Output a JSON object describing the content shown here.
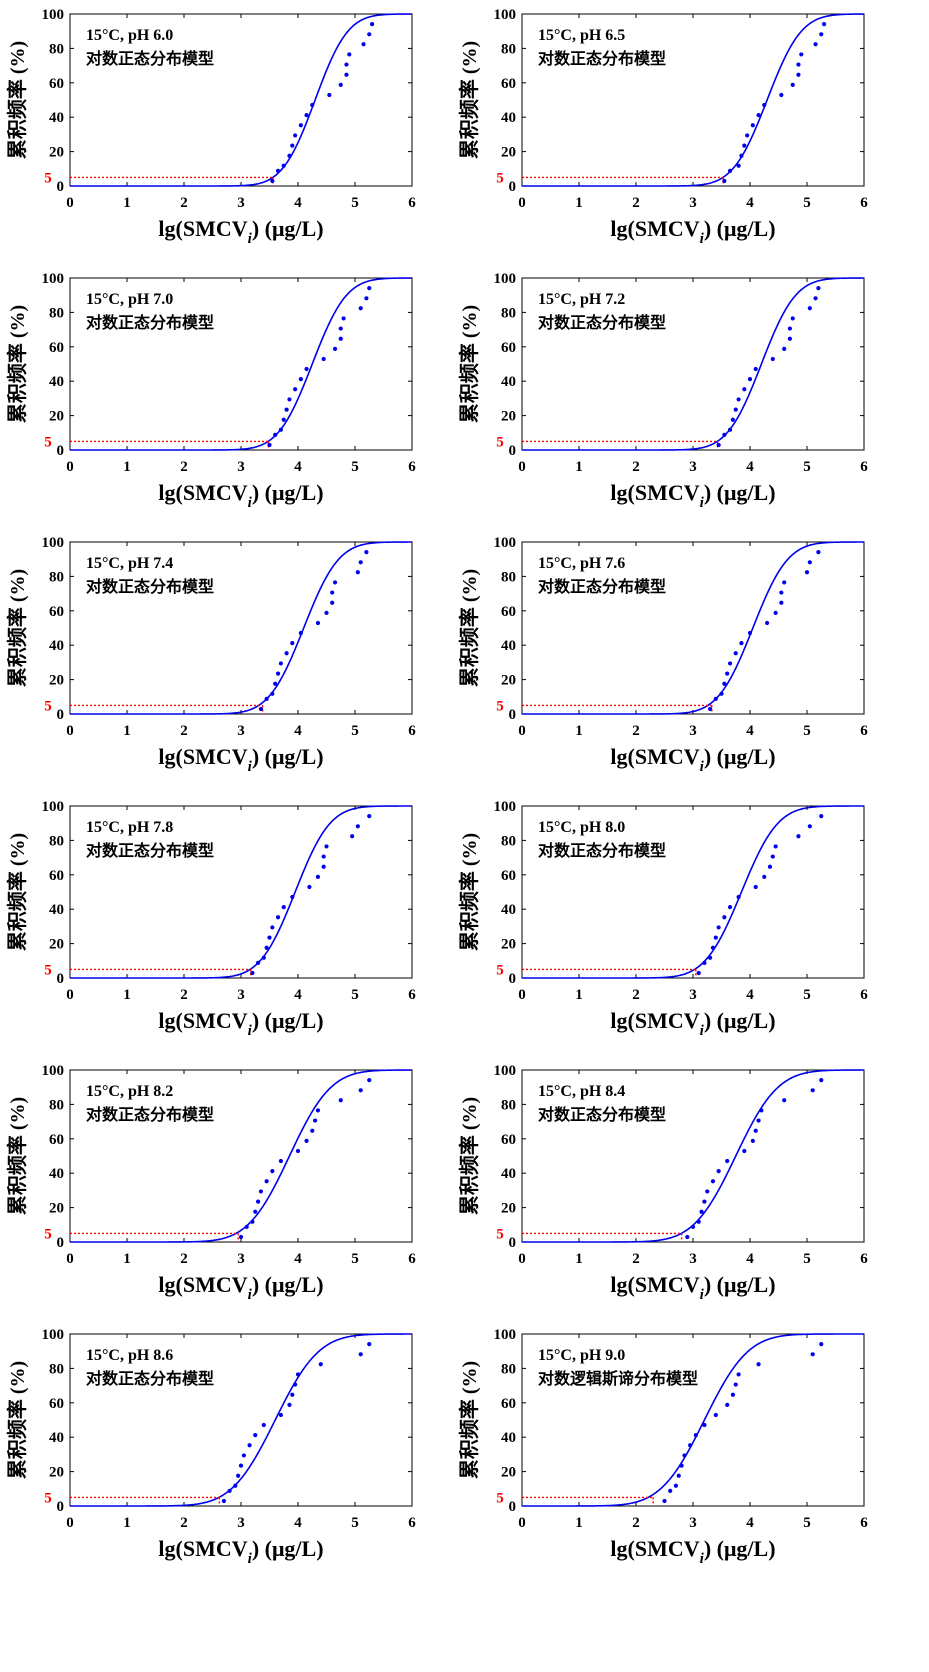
{
  "figure": {
    "ylabel": "累积频率 (%)",
    "xlabel_main": "lg(SMCV",
    "xlabel_sub": "i",
    "xlabel_unit": ")  (μg/L)",
    "ref_label": "5"
  },
  "chart_data": [
    {
      "type": "scatter",
      "title": "15°C, pH 6.0",
      "model": "对数正态分布模型",
      "xlim": [
        0,
        6
      ],
      "ylim": [
        0,
        100
      ],
      "xticks": [
        "0",
        "1",
        "2",
        "3",
        "4",
        "5",
        "6"
      ],
      "yticks": [
        "0",
        "20",
        "40",
        "60",
        "80",
        "100"
      ],
      "curve": {
        "mu": 4.3,
        "sigma": 0.45
      },
      "threshold_x": 3.56,
      "points": [
        {
          "x": 3.55,
          "y": 2.9
        },
        {
          "x": 3.65,
          "y": 8.8
        },
        {
          "x": 3.75,
          "y": 11.8
        },
        {
          "x": 3.85,
          "y": 17.6
        },
        {
          "x": 3.9,
          "y": 23.5
        },
        {
          "x": 3.95,
          "y": 29.4
        },
        {
          "x": 4.05,
          "y": 35.3
        },
        {
          "x": 4.15,
          "y": 41.2
        },
        {
          "x": 4.25,
          "y": 47.1
        },
        {
          "x": 4.55,
          "y": 52.9
        },
        {
          "x": 4.75,
          "y": 58.8
        },
        {
          "x": 4.85,
          "y": 64.7
        },
        {
          "x": 4.85,
          "y": 70.6
        },
        {
          "x": 4.9,
          "y": 76.5
        },
        {
          "x": 5.15,
          "y": 82.4
        },
        {
          "x": 5.25,
          "y": 88.2
        },
        {
          "x": 5.3,
          "y": 94.1
        }
      ]
    },
    {
      "type": "scatter",
      "title": "15°C, pH 6.5",
      "model": "对数正态分布模型",
      "xlim": [
        0,
        6
      ],
      "ylim": [
        0,
        100
      ],
      "xticks": [
        "0",
        "1",
        "2",
        "3",
        "4",
        "5",
        "6"
      ],
      "yticks": [
        "0",
        "20",
        "40",
        "60",
        "80",
        "100"
      ],
      "curve": {
        "mu": 4.3,
        "sigma": 0.47
      },
      "threshold_x": 3.53,
      "points": [
        {
          "x": 3.55,
          "y": 2.9
        },
        {
          "x": 3.65,
          "y": 8.8
        },
        {
          "x": 3.8,
          "y": 11.8
        },
        {
          "x": 3.85,
          "y": 17.6
        },
        {
          "x": 3.9,
          "y": 23.5
        },
        {
          "x": 3.95,
          "y": 29.4
        },
        {
          "x": 4.05,
          "y": 35.3
        },
        {
          "x": 4.15,
          "y": 41.2
        },
        {
          "x": 4.25,
          "y": 47.1
        },
        {
          "x": 4.55,
          "y": 52.9
        },
        {
          "x": 4.75,
          "y": 58.8
        },
        {
          "x": 4.85,
          "y": 64.7
        },
        {
          "x": 4.85,
          "y": 70.6
        },
        {
          "x": 4.9,
          "y": 76.5
        },
        {
          "x": 5.15,
          "y": 82.4
        },
        {
          "x": 5.25,
          "y": 88.2
        },
        {
          "x": 5.3,
          "y": 94.1
        }
      ]
    },
    {
      "type": "scatter",
      "title": "15°C, pH 7.0",
      "model": "对数正态分布模型",
      "xlim": [
        0,
        6
      ],
      "ylim": [
        0,
        100
      ],
      "xticks": [
        "0",
        "1",
        "2",
        "3",
        "4",
        "5",
        "6"
      ],
      "yticks": [
        "0",
        "20",
        "40",
        "60",
        "80",
        "100"
      ],
      "curve": {
        "mu": 4.25,
        "sigma": 0.47
      },
      "threshold_x": 3.48,
      "points": [
        {
          "x": 3.5,
          "y": 2.9
        },
        {
          "x": 3.6,
          "y": 8.8
        },
        {
          "x": 3.7,
          "y": 11.8
        },
        {
          "x": 3.75,
          "y": 17.6
        },
        {
          "x": 3.8,
          "y": 23.5
        },
        {
          "x": 3.85,
          "y": 29.4
        },
        {
          "x": 3.95,
          "y": 35.3
        },
        {
          "x": 4.05,
          "y": 41.2
        },
        {
          "x": 4.15,
          "y": 47.1
        },
        {
          "x": 4.45,
          "y": 52.9
        },
        {
          "x": 4.65,
          "y": 58.8
        },
        {
          "x": 4.75,
          "y": 64.7
        },
        {
          "x": 4.75,
          "y": 70.6
        },
        {
          "x": 4.8,
          "y": 76.5
        },
        {
          "x": 5.1,
          "y": 82.4
        },
        {
          "x": 5.2,
          "y": 88.2
        },
        {
          "x": 5.25,
          "y": 94.1
        }
      ]
    },
    {
      "type": "scatter",
      "title": "15°C, pH 7.2",
      "model": "对数正态分布模型",
      "xlim": [
        0,
        6
      ],
      "ylim": [
        0,
        100
      ],
      "xticks": [
        "0",
        "1",
        "2",
        "3",
        "4",
        "5",
        "6"
      ],
      "yticks": [
        "0",
        "20",
        "40",
        "60",
        "80",
        "100"
      ],
      "curve": {
        "mu": 4.2,
        "sigma": 0.47
      },
      "threshold_x": 3.43,
      "points": [
        {
          "x": 3.45,
          "y": 2.9
        },
        {
          "x": 3.55,
          "y": 8.8
        },
        {
          "x": 3.65,
          "y": 11.8
        },
        {
          "x": 3.7,
          "y": 17.6
        },
        {
          "x": 3.75,
          "y": 23.5
        },
        {
          "x": 3.8,
          "y": 29.4
        },
        {
          "x": 3.9,
          "y": 35.3
        },
        {
          "x": 4.0,
          "y": 41.2
        },
        {
          "x": 4.1,
          "y": 47.1
        },
        {
          "x": 4.4,
          "y": 52.9
        },
        {
          "x": 4.6,
          "y": 58.8
        },
        {
          "x": 4.7,
          "y": 64.7
        },
        {
          "x": 4.7,
          "y": 70.6
        },
        {
          "x": 4.75,
          "y": 76.5
        },
        {
          "x": 5.05,
          "y": 82.4
        },
        {
          "x": 5.15,
          "y": 88.2
        },
        {
          "x": 5.2,
          "y": 94.1
        }
      ]
    },
    {
      "type": "scatter",
      "title": "15°C, pH 7.4",
      "model": "对数正态分布模型",
      "xlim": [
        0,
        6
      ],
      "ylim": [
        0,
        100
      ],
      "xticks": [
        "0",
        "1",
        "2",
        "3",
        "4",
        "5",
        "6"
      ],
      "yticks": [
        "0",
        "20",
        "40",
        "60",
        "80",
        "100"
      ],
      "curve": {
        "mu": 4.1,
        "sigma": 0.48
      },
      "threshold_x": 3.38,
      "points": [
        {
          "x": 3.35,
          "y": 2.9
        },
        {
          "x": 3.45,
          "y": 8.8
        },
        {
          "x": 3.55,
          "y": 11.8
        },
        {
          "x": 3.6,
          "y": 17.6
        },
        {
          "x": 3.65,
          "y": 23.5
        },
        {
          "x": 3.7,
          "y": 29.4
        },
        {
          "x": 3.8,
          "y": 35.3
        },
        {
          "x": 3.9,
          "y": 41.2
        },
        {
          "x": 4.05,
          "y": 47.1
        },
        {
          "x": 4.35,
          "y": 52.9
        },
        {
          "x": 4.5,
          "y": 58.8
        },
        {
          "x": 4.6,
          "y": 64.7
        },
        {
          "x": 4.6,
          "y": 70.6
        },
        {
          "x": 4.65,
          "y": 76.5
        },
        {
          "x": 5.05,
          "y": 82.4
        },
        {
          "x": 5.1,
          "y": 88.2
        },
        {
          "x": 5.2,
          "y": 94.1
        }
      ]
    },
    {
      "type": "scatter",
      "title": "15°C, pH 7.6",
      "model": "对数正态分布模型",
      "xlim": [
        0,
        6
      ],
      "ylim": [
        0,
        100
      ],
      "xticks": [
        "0",
        "1",
        "2",
        "3",
        "4",
        "5",
        "6"
      ],
      "yticks": [
        "0",
        "20",
        "40",
        "60",
        "80",
        "100"
      ],
      "curve": {
        "mu": 4.05,
        "sigma": 0.48
      },
      "threshold_x": 3.33,
      "points": [
        {
          "x": 3.3,
          "y": 2.9
        },
        {
          "x": 3.4,
          "y": 8.8
        },
        {
          "x": 3.5,
          "y": 11.8
        },
        {
          "x": 3.55,
          "y": 17.6
        },
        {
          "x": 3.6,
          "y": 23.5
        },
        {
          "x": 3.65,
          "y": 29.4
        },
        {
          "x": 3.75,
          "y": 35.3
        },
        {
          "x": 3.85,
          "y": 41.2
        },
        {
          "x": 4.0,
          "y": 47.1
        },
        {
          "x": 4.3,
          "y": 52.9
        },
        {
          "x": 4.45,
          "y": 58.8
        },
        {
          "x": 4.55,
          "y": 64.7
        },
        {
          "x": 4.55,
          "y": 70.6
        },
        {
          "x": 4.6,
          "y": 76.5
        },
        {
          "x": 5.0,
          "y": 82.4
        },
        {
          "x": 5.05,
          "y": 88.2
        },
        {
          "x": 5.2,
          "y": 94.1
        }
      ]
    },
    {
      "type": "scatter",
      "title": "15°C, pH 7.8",
      "model": "对数正态分布模型",
      "xlim": [
        0,
        6
      ],
      "ylim": [
        0,
        100
      ],
      "xticks": [
        "0",
        "1",
        "2",
        "3",
        "4",
        "5",
        "6"
      ],
      "yticks": [
        "0",
        "20",
        "40",
        "60",
        "80",
        "100"
      ],
      "curve": {
        "mu": 3.95,
        "sigma": 0.48
      },
      "threshold_x": 3.17,
      "points": [
        {
          "x": 3.2,
          "y": 2.9
        },
        {
          "x": 3.3,
          "y": 8.8
        },
        {
          "x": 3.4,
          "y": 11.8
        },
        {
          "x": 3.45,
          "y": 17.6
        },
        {
          "x": 3.5,
          "y": 23.5
        },
        {
          "x": 3.55,
          "y": 29.4
        },
        {
          "x": 3.65,
          "y": 35.3
        },
        {
          "x": 3.75,
          "y": 41.2
        },
        {
          "x": 3.9,
          "y": 47.1
        },
        {
          "x": 4.2,
          "y": 52.9
        },
        {
          "x": 4.35,
          "y": 58.8
        },
        {
          "x": 4.45,
          "y": 64.7
        },
        {
          "x": 4.45,
          "y": 70.6
        },
        {
          "x": 4.5,
          "y": 76.5
        },
        {
          "x": 4.95,
          "y": 82.4
        },
        {
          "x": 5.05,
          "y": 88.2
        },
        {
          "x": 5.25,
          "y": 94.1
        }
      ]
    },
    {
      "type": "scatter",
      "title": "15°C, pH 8.0",
      "model": "对数正态分布模型",
      "xlim": [
        0,
        6
      ],
      "ylim": [
        0,
        100
      ],
      "xticks": [
        "0",
        "1",
        "2",
        "3",
        "4",
        "5",
        "6"
      ],
      "yticks": [
        "0",
        "20",
        "40",
        "60",
        "80",
        "100"
      ],
      "curve": {
        "mu": 3.85,
        "sigma": 0.5
      },
      "threshold_x": 3.05,
      "points": [
        {
          "x": 3.1,
          "y": 2.9
        },
        {
          "x": 3.2,
          "y": 8.8
        },
        {
          "x": 3.3,
          "y": 11.8
        },
        {
          "x": 3.35,
          "y": 17.6
        },
        {
          "x": 3.4,
          "y": 23.5
        },
        {
          "x": 3.45,
          "y": 29.4
        },
        {
          "x": 3.55,
          "y": 35.3
        },
        {
          "x": 3.65,
          "y": 41.2
        },
        {
          "x": 3.8,
          "y": 47.1
        },
        {
          "x": 4.1,
          "y": 52.9
        },
        {
          "x": 4.25,
          "y": 58.8
        },
        {
          "x": 4.35,
          "y": 64.7
        },
        {
          "x": 4.4,
          "y": 70.6
        },
        {
          "x": 4.45,
          "y": 76.5
        },
        {
          "x": 4.85,
          "y": 82.4
        },
        {
          "x": 5.05,
          "y": 88.2
        },
        {
          "x": 5.25,
          "y": 94.1
        }
      ]
    },
    {
      "type": "scatter",
      "title": "15°C, pH 8.2",
      "model": "对数正态分布模型",
      "xlim": [
        0,
        6
      ],
      "ylim": [
        0,
        100
      ],
      "xticks": [
        "0",
        "1",
        "2",
        "3",
        "4",
        "5",
        "6"
      ],
      "yticks": [
        "0",
        "20",
        "40",
        "60",
        "80",
        "100"
      ],
      "curve": {
        "mu": 3.85,
        "sigma": 0.57
      },
      "threshold_x": 2.95,
      "points": [
        {
          "x": 3.0,
          "y": 2.9
        },
        {
          "x": 3.1,
          "y": 8.8
        },
        {
          "x": 3.2,
          "y": 11.8
        },
        {
          "x": 3.25,
          "y": 17.6
        },
        {
          "x": 3.3,
          "y": 23.5
        },
        {
          "x": 3.35,
          "y": 29.4
        },
        {
          "x": 3.45,
          "y": 35.3
        },
        {
          "x": 3.55,
          "y": 41.2
        },
        {
          "x": 3.7,
          "y": 47.1
        },
        {
          "x": 4.0,
          "y": 52.9
        },
        {
          "x": 4.15,
          "y": 58.8
        },
        {
          "x": 4.25,
          "y": 64.7
        },
        {
          "x": 4.3,
          "y": 70.6
        },
        {
          "x": 4.35,
          "y": 76.5
        },
        {
          "x": 4.75,
          "y": 82.4
        },
        {
          "x": 5.1,
          "y": 88.2
        },
        {
          "x": 5.25,
          "y": 94.1
        }
      ]
    },
    {
      "type": "scatter",
      "title": "15°C, pH 8.4",
      "model": "对数正态分布模型",
      "xlim": [
        0,
        6
      ],
      "ylim": [
        0,
        100
      ],
      "xticks": [
        "0",
        "1",
        "2",
        "3",
        "4",
        "5",
        "6"
      ],
      "yticks": [
        "0",
        "20",
        "40",
        "60",
        "80",
        "100"
      ],
      "curve": {
        "mu": 3.75,
        "sigma": 0.58
      },
      "threshold_x": 2.8,
      "points": [
        {
          "x": 2.9,
          "y": 2.9
        },
        {
          "x": 3.0,
          "y": 8.8
        },
        {
          "x": 3.1,
          "y": 11.8
        },
        {
          "x": 3.15,
          "y": 17.6
        },
        {
          "x": 3.2,
          "y": 23.5
        },
        {
          "x": 3.25,
          "y": 29.4
        },
        {
          "x": 3.35,
          "y": 35.3
        },
        {
          "x": 3.45,
          "y": 41.2
        },
        {
          "x": 3.6,
          "y": 47.1
        },
        {
          "x": 3.9,
          "y": 52.9
        },
        {
          "x": 4.05,
          "y": 58.8
        },
        {
          "x": 4.1,
          "y": 64.7
        },
        {
          "x": 4.15,
          "y": 70.6
        },
        {
          "x": 4.2,
          "y": 76.5
        },
        {
          "x": 4.6,
          "y": 82.4
        },
        {
          "x": 5.1,
          "y": 88.2
        },
        {
          "x": 5.25,
          "y": 94.1
        }
      ]
    },
    {
      "type": "scatter",
      "title": "15°C, pH 8.6",
      "model": "对数正态分布模型",
      "xlim": [
        0,
        6
      ],
      "ylim": [
        0,
        100
      ],
      "xticks": [
        "0",
        "1",
        "2",
        "3",
        "4",
        "5",
        "6"
      ],
      "yticks": [
        "0",
        "20",
        "40",
        "60",
        "80",
        "100"
      ],
      "curve": {
        "mu": 3.6,
        "sigma": 0.6
      },
      "threshold_x": 2.62,
      "points": [
        {
          "x": 2.7,
          "y": 2.9
        },
        {
          "x": 2.8,
          "y": 8.8
        },
        {
          "x": 2.9,
          "y": 11.8
        },
        {
          "x": 2.95,
          "y": 17.6
        },
        {
          "x": 3.0,
          "y": 23.5
        },
        {
          "x": 3.05,
          "y": 29.4
        },
        {
          "x": 3.15,
          "y": 35.3
        },
        {
          "x": 3.25,
          "y": 41.2
        },
        {
          "x": 3.4,
          "y": 47.1
        },
        {
          "x": 3.7,
          "y": 52.9
        },
        {
          "x": 3.85,
          "y": 58.8
        },
        {
          "x": 3.9,
          "y": 64.7
        },
        {
          "x": 3.95,
          "y": 70.6
        },
        {
          "x": 4.0,
          "y": 76.5
        },
        {
          "x": 4.4,
          "y": 82.4
        },
        {
          "x": 5.1,
          "y": 88.2
        },
        {
          "x": 5.25,
          "y": 94.1
        }
      ]
    },
    {
      "type": "scatter",
      "title": "15°C, pH 9.0",
      "model": "对数逻辑斯谛分布模型",
      "xlim": [
        0,
        6
      ],
      "ylim": [
        0,
        100
      ],
      "xticks": [
        "0",
        "1",
        "2",
        "3",
        "4",
        "5",
        "6"
      ],
      "yticks": [
        "0",
        "20",
        "40",
        "60",
        "80",
        "100"
      ],
      "curve": {
        "mu": 3.2,
        "sigma": 0.6
      },
      "threshold_x": 2.3,
      "points": [
        {
          "x": 2.5,
          "y": 2.9
        },
        {
          "x": 2.6,
          "y": 8.8
        },
        {
          "x": 2.7,
          "y": 11.8
        },
        {
          "x": 2.75,
          "y": 17.6
        },
        {
          "x": 2.8,
          "y": 23.5
        },
        {
          "x": 2.85,
          "y": 29.4
        },
        {
          "x": 2.95,
          "y": 35.3
        },
        {
          "x": 3.05,
          "y": 41.2
        },
        {
          "x": 3.2,
          "y": 47.1
        },
        {
          "x": 3.4,
          "y": 52.9
        },
        {
          "x": 3.6,
          "y": 58.8
        },
        {
          "x": 3.7,
          "y": 64.7
        },
        {
          "x": 3.75,
          "y": 70.6
        },
        {
          "x": 3.8,
          "y": 76.5
        },
        {
          "x": 4.15,
          "y": 82.4
        },
        {
          "x": 5.1,
          "y": 88.2
        },
        {
          "x": 5.25,
          "y": 94.1
        }
      ]
    }
  ]
}
